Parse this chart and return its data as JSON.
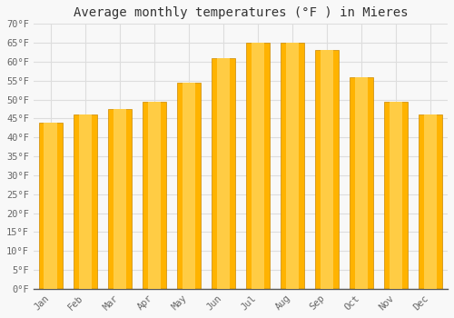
{
  "title": "Average monthly temperatures (°F ) in Mieres",
  "months": [
    "Jan",
    "Feb",
    "Mar",
    "Apr",
    "May",
    "Jun",
    "Jul",
    "Aug",
    "Sep",
    "Oct",
    "Nov",
    "Dec"
  ],
  "values": [
    44,
    46,
    47.5,
    49.5,
    54.5,
    61,
    65,
    65,
    63,
    56,
    49.5,
    46
  ],
  "bar_color": "#FFA500",
  "bar_edge_color": "#E8960A",
  "ylim": [
    0,
    70
  ],
  "yticks": [
    0,
    5,
    10,
    15,
    20,
    25,
    30,
    35,
    40,
    45,
    50,
    55,
    60,
    65,
    70
  ],
  "background_color": "#f8f8f8",
  "grid_color": "#dddddd",
  "title_fontsize": 10,
  "tick_fontsize": 7.5
}
